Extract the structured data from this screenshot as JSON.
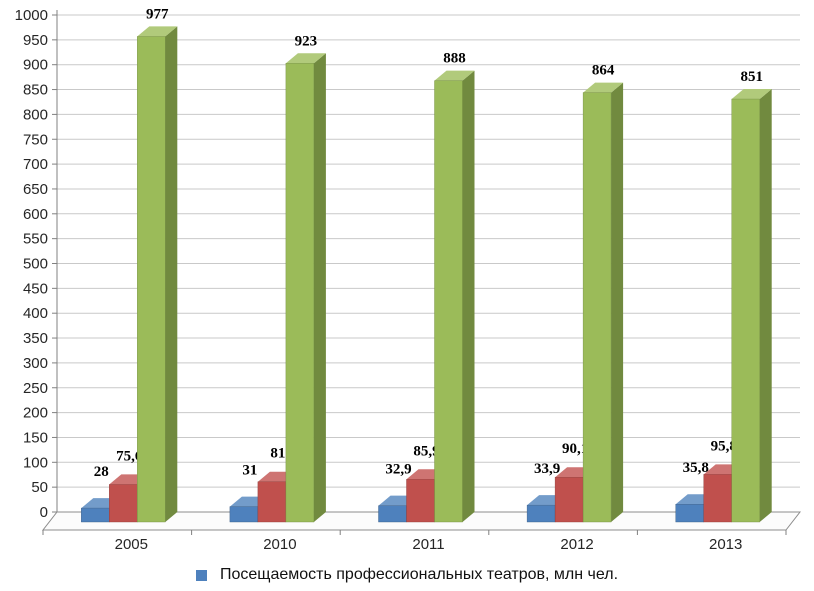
{
  "chart_data": {
    "type": "bar",
    "style": "3d-clustered-column",
    "title": "",
    "categories": [
      "2005",
      "2010",
      "2011",
      "2012",
      "2013"
    ],
    "series": [
      {
        "name": "Посещаемость профессиональных театров, млн чел.",
        "color": "#4e81bd",
        "top_color": "#739cca",
        "side_color": "#385a80",
        "values": [
          28,
          31,
          32.9,
          33.9,
          35.8
        ],
        "labels": [
          "28",
          "31",
          "32,9",
          "33,9",
          "35,8"
        ]
      },
      {
        "name": "",
        "color": "#c0504d",
        "top_color": "#ce7472",
        "side_color": "#8c3a38",
        "values": [
          75.6,
          81,
          85.9,
          90.1,
          95.8
        ],
        "labels": [
          "75,6",
          "81",
          "85,9",
          "90,1",
          "95,8"
        ]
      },
      {
        "name": "",
        "color": "#9bbb59",
        "top_color": "#b1ca7b",
        "side_color": "#718a3f",
        "values": [
          977,
          923,
          888,
          864,
          851
        ],
        "labels": [
          "977",
          "923",
          "888",
          "864",
          "851"
        ]
      }
    ],
    "y_axis": {
      "min": 0,
      "max": 1000,
      "step": 50,
      "tick_labels": [
        "0",
        "50",
        "100",
        "150",
        "200",
        "250",
        "300",
        "350",
        "400",
        "450",
        "500",
        "550",
        "600",
        "650",
        "700",
        "750",
        "800",
        "850",
        "900",
        "950",
        "1000"
      ]
    },
    "grid": true,
    "ylim": [
      0,
      1000
    ],
    "legend": {
      "position": "bottom",
      "items": [
        {
          "label": "Посещаемость профессиональных театров, млн чел.",
          "color": "#4e81bd"
        }
      ]
    }
  }
}
